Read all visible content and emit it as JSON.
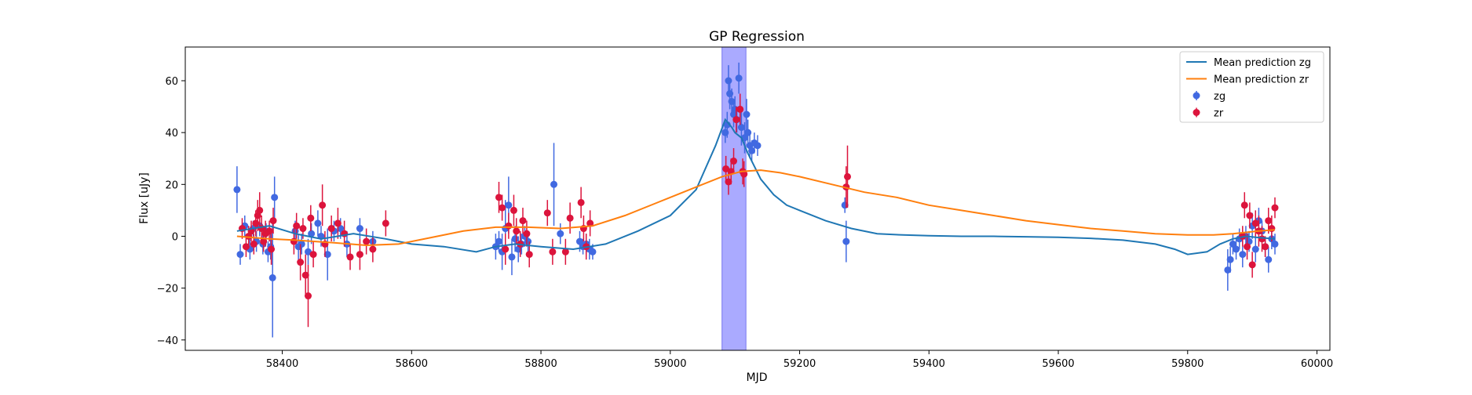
{
  "chart_data": {
    "type": "scatter",
    "title": "GP Regression",
    "xlabel": "MJD",
    "ylabel": "Flux [uJy]",
    "xlim": [
      58250,
      60020
    ],
    "ylim": [
      -44,
      73
    ],
    "x_ticks": [
      58400,
      58600,
      58800,
      59000,
      59200,
      59400,
      59600,
      59800,
      60000
    ],
    "y_ticks": [
      -40,
      -20,
      0,
      20,
      40,
      60
    ],
    "legend_position": "top-right",
    "highlight_band": {
      "x_start": 59080,
      "x_end": 59117,
      "color": "#aaaaff"
    },
    "series": [
      {
        "name": "Mean prediction zg",
        "kind": "line",
        "color": "#1f77b4",
        "x": [
          58330,
          58380,
          58420,
          58460,
          58510,
          58560,
          58600,
          58650,
          58700,
          58730,
          58760,
          58800,
          58850,
          58900,
          58950,
          59000,
          59040,
          59070,
          59085,
          59095,
          59100,
          59110,
          59120,
          59140,
          59160,
          59180,
          59200,
          59240,
          59280,
          59320,
          59360,
          59400,
          59450,
          59500,
          59550,
          59600,
          59650,
          59700,
          59750,
          59780,
          59800,
          59830,
          59850,
          59870,
          59890,
          59910,
          59935
        ],
        "y": [
          2,
          4,
          1,
          -1,
          1,
          -1,
          -3,
          -4,
          -6,
          -4,
          -3,
          -4,
          -5,
          -3,
          2,
          8,
          18,
          35,
          45,
          42,
          40,
          38,
          32,
          22,
          16,
          12,
          10,
          6,
          3,
          1,
          0.5,
          0.2,
          0,
          0,
          -0.2,
          -0.4,
          -0.8,
          -1.5,
          -3,
          -5,
          -7,
          -6,
          -3,
          -1,
          0,
          -0.5,
          -1
        ]
      },
      {
        "name": "Mean prediction zr",
        "kind": "line",
        "color": "#ff7f0e",
        "x": [
          58330,
          58380,
          58420,
          58480,
          58530,
          58580,
          58630,
          58680,
          58730,
          58780,
          58830,
          58880,
          58930,
          58980,
          59030,
          59080,
          59110,
          59140,
          59170,
          59200,
          59250,
          59300,
          59350,
          59400,
          59450,
          59500,
          59550,
          59600,
          59650,
          59700,
          59750,
          59800,
          59840,
          59870,
          59890,
          59910,
          59935
        ],
        "y": [
          0,
          -1,
          -1.5,
          -2.5,
          -3.5,
          -3,
          -0.5,
          2,
          3.5,
          3.5,
          3,
          4,
          8,
          13,
          18,
          23,
          25,
          25.5,
          24.5,
          23,
          20,
          17,
          15,
          12,
          10,
          8,
          6,
          4.5,
          3,
          2,
          1,
          0.5,
          0.5,
          1,
          1.5,
          2,
          2.5
        ]
      },
      {
        "name": "zg",
        "kind": "errorbar",
        "color": "#4169e1",
        "x": [
          58330,
          58335,
          58342,
          58350,
          58355,
          58360,
          58365,
          58370,
          58375,
          58378,
          58382,
          58385,
          58388,
          58420,
          58425,
          58430,
          58440,
          58445,
          58455,
          58460,
          58470,
          58480,
          58490,
          58500,
          58520,
          58540,
          58730,
          58735,
          58740,
          58745,
          58750,
          58755,
          58760,
          58765,
          58770,
          58775,
          58780,
          58820,
          58830,
          58860,
          58865,
          58870,
          58875,
          58880,
          59085,
          59088,
          59090,
          59092,
          59095,
          59098,
          59100,
          59103,
          59106,
          59110,
          59115,
          59118,
          59120,
          59123,
          59126,
          59130,
          59135,
          59270,
          59272,
          59862,
          59866,
          59870,
          59875,
          59880,
          59885,
          59890,
          59895,
          59900,
          59905,
          59910,
          59915,
          59920,
          59925,
          59930,
          59935
        ],
        "y": [
          18,
          -7,
          4,
          -5,
          3,
          -2,
          4,
          -3,
          2,
          -6,
          -4,
          -16,
          15,
          2,
          -4,
          -3,
          -6,
          1,
          5,
          0,
          -7,
          2,
          3,
          -3,
          3,
          -2,
          -4,
          -2,
          -6,
          3,
          12,
          -8,
          -1,
          -5,
          -3,
          0,
          -2,
          20,
          1,
          -2,
          -4,
          -3,
          -5,
          -6,
          40,
          43,
          60,
          55,
          52,
          47,
          49,
          45,
          61,
          42,
          38,
          47,
          40,
          35,
          33,
          36,
          35,
          12,
          -2,
          -13,
          -9,
          -3,
          -5,
          -1,
          -7,
          0,
          -2,
          4,
          -5,
          6,
          2,
          -4,
          -9,
          -1,
          -3
        ],
        "err": [
          9,
          4,
          4,
          4,
          3,
          4,
          4,
          4,
          3,
          4,
          5,
          23,
          8,
          4,
          5,
          4,
          5,
          4,
          5,
          4,
          10,
          4,
          4,
          5,
          4,
          4,
          5,
          4,
          7,
          11,
          11,
          7,
          5,
          5,
          4,
          4,
          4,
          16,
          4,
          4,
          3,
          4,
          4,
          3,
          4,
          5,
          6,
          6,
          5,
          5,
          5,
          5,
          6,
          7,
          6,
          6,
          5,
          5,
          4,
          4,
          4,
          3,
          8,
          8,
          5,
          4,
          4,
          4,
          5,
          4,
          4,
          5,
          5,
          5,
          4,
          4,
          5,
          4,
          4
        ]
      },
      {
        "name": "zr",
        "kind": "errorbar",
        "color": "#dc143c",
        "x": [
          58338,
          58344,
          58348,
          58352,
          58356,
          58359,
          58362,
          58365,
          58368,
          58371,
          58374,
          58380,
          58383,
          58386,
          58418,
          58422,
          58428,
          58432,
          58436,
          58440,
          58444,
          58448,
          58462,
          58466,
          58476,
          58486,
          58496,
          58505,
          58520,
          58530,
          58540,
          58560,
          58735,
          58740,
          58745,
          58750,
          58758,
          58762,
          58768,
          58772,
          58778,
          58782,
          58810,
          58818,
          58838,
          58845,
          58862,
          58866,
          58870,
          58876,
          59086,
          59090,
          59094,
          59098,
          59102,
          59108,
          59112,
          59114,
          59272,
          59274,
          59885,
          59888,
          59892,
          59896,
          59900,
          59905,
          59910,
          59915,
          59920,
          59925,
          59930,
          59935
        ],
        "y": [
          3,
          -4,
          0,
          2,
          -3,
          5,
          8,
          10,
          3,
          -2,
          1,
          2,
          -5,
          6,
          -2,
          4,
          -10,
          3,
          -15,
          -23,
          7,
          -7,
          12,
          -3,
          3,
          5,
          1,
          -8,
          -7,
          -2,
          -5,
          5,
          15,
          11,
          -5,
          4,
          10,
          2,
          -3,
          6,
          1,
          -7,
          9,
          -6,
          -6,
          7,
          13,
          3,
          -4,
          5,
          26,
          21,
          25,
          29,
          45,
          49,
          25,
          24,
          19,
          23,
          0,
          12,
          -4,
          8,
          -11,
          5,
          2,
          -1,
          -4,
          6,
          3,
          11
        ],
        "err": [
          4,
          4,
          4,
          4,
          4,
          5,
          6,
          7,
          5,
          4,
          5,
          4,
          6,
          5,
          5,
          5,
          7,
          4,
          8,
          12,
          5,
          5,
          8,
          5,
          5,
          6,
          5,
          5,
          6,
          5,
          5,
          5,
          6,
          5,
          6,
          5,
          6,
          5,
          5,
          5,
          5,
          5,
          5,
          5,
          5,
          6,
          6,
          5,
          5,
          5,
          5,
          5,
          5,
          5,
          5,
          6,
          5,
          5,
          8,
          12,
          4,
          5,
          5,
          5,
          5,
          5,
          6,
          5,
          4,
          5,
          5,
          4
        ]
      }
    ]
  }
}
